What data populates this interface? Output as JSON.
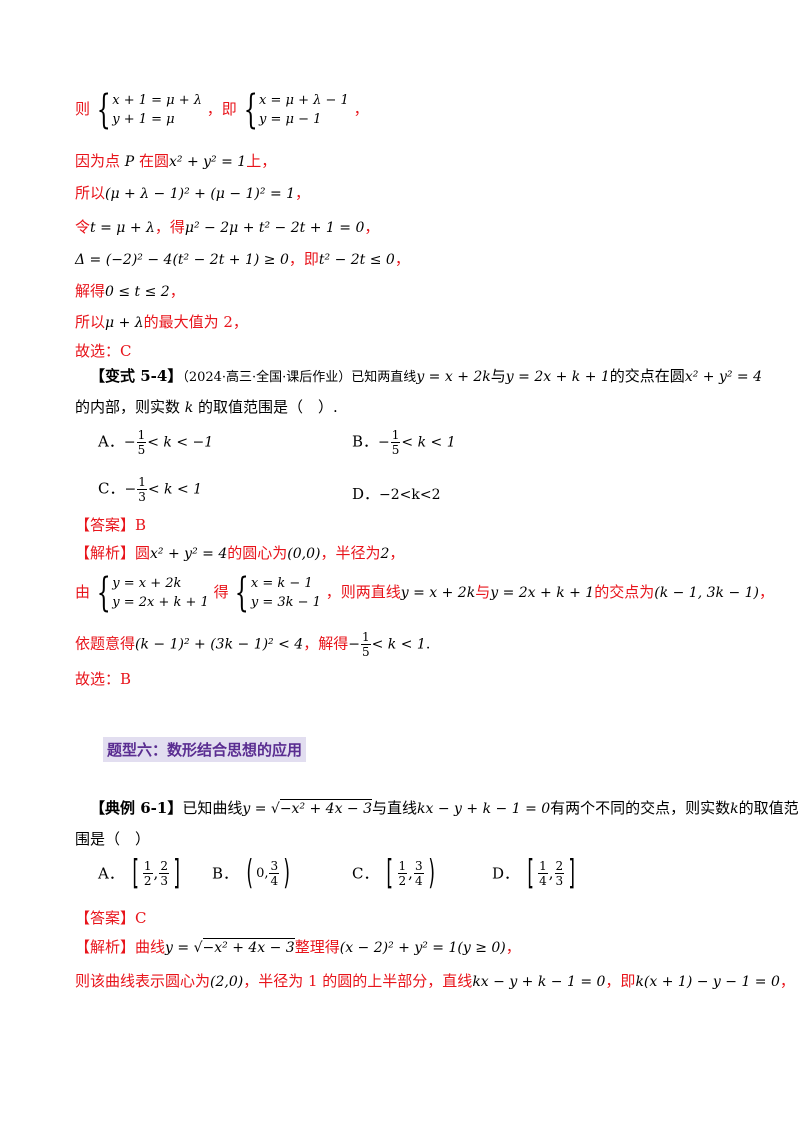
{
  "l1": {
    "a": "则",
    "sys1_r1": "x + 1 = μ + λ",
    "sys1_r2": "y + 1 = μ",
    "b": "，即",
    "sys2_r1": "x = μ + λ − 1",
    "sys2_r2": "y = μ − 1",
    "c": "，"
  },
  "l2": {
    "a": "因为点 ",
    "p": "P",
    "b": " 在圆",
    "eq": "x² + y² = 1",
    "c": "上，"
  },
  "l3": {
    "a": "所以",
    "eq": "(μ + λ − 1)² + (μ − 1)² = 1",
    "b": "，"
  },
  "l4": {
    "a": "令",
    "eq1": "t = μ + λ",
    "b": "，得",
    "eq2": "μ² − 2μ + t² − 2t + 1 = 0",
    "c": "，"
  },
  "l5": {
    "eq1": "Δ = (−2)² − 4(t² − 2t + 1) ≥ 0",
    "b": "，即",
    "eq2": "t² − 2t ≤ 0",
    "c": "，"
  },
  "l6": {
    "a": "解得",
    "eq": "0 ≤ t ≤ 2",
    "b": "，"
  },
  "l7": {
    "a": "所以",
    "eq": "μ + λ",
    "b": "的最大值为 2，"
  },
  "l8": {
    "a": "故选：C"
  },
  "q54": {
    "tag": "【变式 5-4】",
    "src": "（2024·高三·全国·课后作业）已知两直线",
    "eq1": "y = x + 2k",
    "t1": "与",
    "eq2": "y = 2x + k + 1",
    "t2": "的交点在圆",
    "eq3": "x² + y² = 4",
    "line2a": "的内部，则实数 ",
    "k": "k",
    "line2b": " 的取值范围是（　）.",
    "optA_label": "A．",
    "optA": {
      "minus": "−",
      "n": "1",
      "d": "5",
      "rest": "< k < −1"
    },
    "optB_label": "B．",
    "optB": {
      "minus": "−",
      "n": "1",
      "d": "5",
      "rest": "< k < 1"
    },
    "optC_label": "C．",
    "optC": {
      "minus": "−",
      "n": "1",
      "d": "3",
      "rest": "< k < 1"
    },
    "optD_label": "D．",
    "optD": "−2<k<2",
    "ans_tag": "【答案】",
    "ans": "B",
    "ana_tag": "【解析】",
    "a1a": "圆",
    "a1eq1": "x² + y² = 4",
    "a1b": "的圆心为",
    "a1eq2": "(0,0)",
    "a1c": "，半径为",
    "a1eq3": "2",
    "a1d": "，",
    "a2a": "由",
    "a2s1r1": "y = x + 2k",
    "a2s1r2": "y = 2x + k + 1",
    "a2b": "得",
    "a2s2r1": "x = k − 1",
    "a2s2r2": "y = 3k − 1",
    "a2c": "，则两直线",
    "a2eq1": "y = x + 2k",
    "a2d": "与",
    "a2eq2": "y = 2x + k + 1",
    "a2e": "的交点为",
    "a2eq3": "(k − 1, 3k − 1)",
    "a2f": "，",
    "a3a": "依题意得",
    "a3eq": "(k − 1)² + (3k − 1)² < 4",
    "a3b": "，解得",
    "a3minus": "−",
    "a3n": "1",
    "a3d": "5",
    "a3rest": "< k < 1",
    "a3c": ".",
    "a4": "故选：B"
  },
  "section": {
    "title": "题型六：数形结合思想的应用"
  },
  "q61": {
    "tag": "【典例 6-1】",
    "t1": "已知曲线",
    "eq1a": "y = ",
    "eq1b": "−x² + 4x − 3",
    "t2": "与直线",
    "eq2": "kx − y + k − 1 = 0",
    "t3": "有两个不同的交点，则实数",
    "k": "k",
    "t4": "的取值范",
    "line2": "围是（　）",
    "optA_label": "A．",
    "optA": {
      "n1": "1",
      "d1": "2",
      "n2": "2",
      "d2": "3"
    },
    "optB_label": "B．",
    "optB": {
      "left": "0,",
      "n2": "3",
      "d2": "4"
    },
    "optC_label": "C．",
    "optC": {
      "n1": "1",
      "d1": "2",
      "n2": "3",
      "d2": "4"
    },
    "optD_label": "D．",
    "optD": {
      "n1": "1",
      "d1": "4",
      "n2": "2",
      "d2": "3"
    },
    "ans_tag": "【答案】",
    "ans": "C",
    "ana_tag": "【解析】",
    "a1a": "曲线",
    "a1eq1a": "y = ",
    "a1eq1b": "−x² + 4x − 3",
    "a1b": "整理得",
    "a1eq2": "(x − 2)² + y² = 1(y ≥ 0)",
    "a1c": "，",
    "a2a": "则该曲线表示圆心为",
    "a2eq1": "(2,0)",
    "a2b": "，半径为 1 的圆的上半部分，直线",
    "a2eq2": "kx − y + k − 1 = 0",
    "a2c": "，即",
    "a2eq3": "k(x + 1) − y − 1 = 0",
    "a2d": "，"
  }
}
